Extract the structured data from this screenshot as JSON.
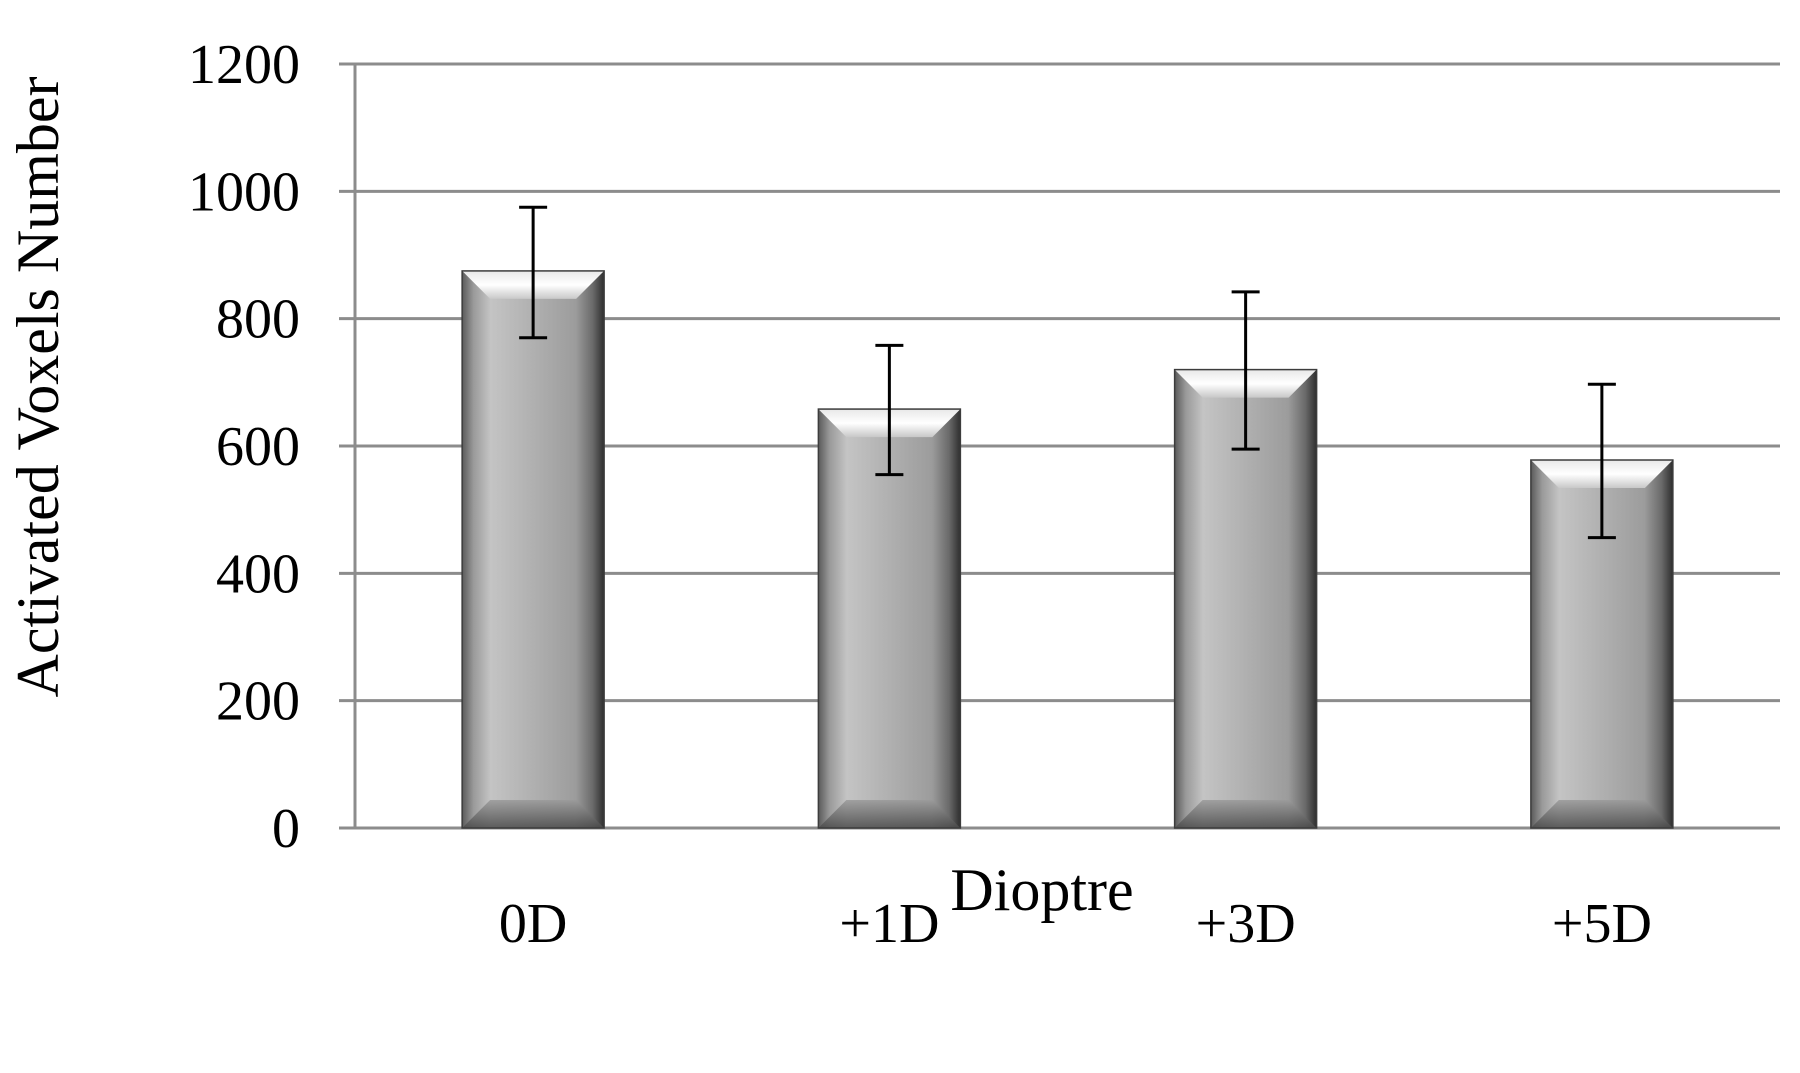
{
  "chart_data": {
    "type": "bar",
    "title": "",
    "xlabel": "Dioptre",
    "ylabel": "Activated Voxels Number",
    "categories": [
      "0D",
      "+1D",
      "+3D",
      "+5D"
    ],
    "values": [
      875,
      658,
      720,
      578
    ],
    "error_high": [
      975,
      758,
      842,
      697
    ],
    "error_low": [
      770,
      555,
      595,
      456
    ],
    "ylim": [
      0,
      1200
    ],
    "yticks": [
      "0",
      "200",
      "400",
      "600",
      "800",
      "1000",
      "1200"
    ],
    "ytick_values": [
      0,
      200,
      400,
      600,
      800,
      1000,
      1200
    ],
    "grid": true,
    "legend": "none",
    "colors": {
      "bar": "#a8a8a8",
      "bar_dark": "#3a3a3a",
      "bar_light": "#f2f2f2",
      "grid": "#8c8c8c",
      "error": "#000000"
    }
  }
}
